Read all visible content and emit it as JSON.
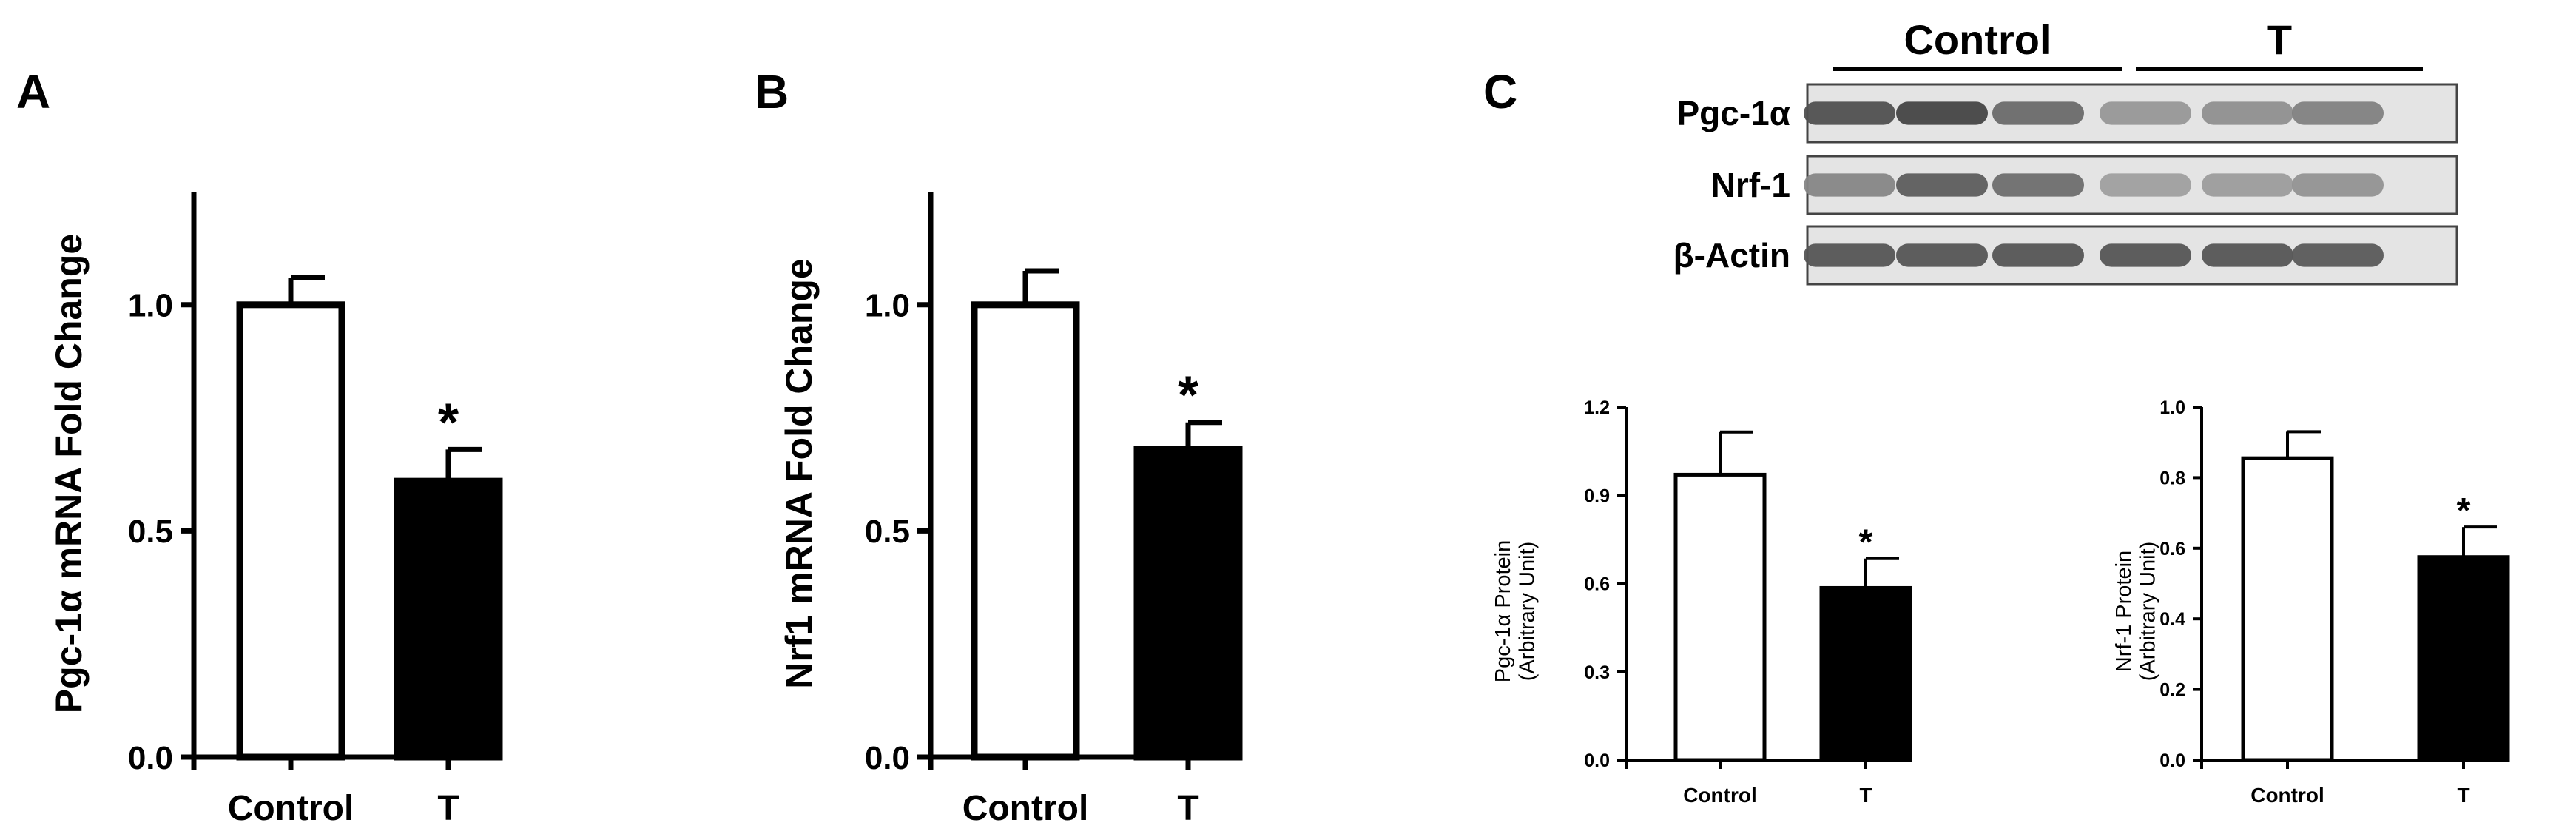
{
  "panels": {
    "a": "A",
    "b": "B",
    "c": "C"
  },
  "blot": {
    "group_labels": [
      "Control",
      "T"
    ],
    "lane_groups": [
      "Control",
      "Control",
      "Control",
      "T",
      "T",
      "T"
    ],
    "rows": [
      {
        "label": "Pgc-1α",
        "intensity": [
          0.88,
          0.95,
          0.72,
          0.45,
          0.5,
          0.58
        ]
      },
      {
        "label": "Nrf-1",
        "intensity": [
          0.55,
          0.8,
          0.7,
          0.4,
          0.42,
          0.48
        ]
      },
      {
        "label": "β-Actin",
        "intensity": [
          0.85,
          0.85,
          0.85,
          0.85,
          0.85,
          0.82
        ]
      }
    ]
  },
  "chart_data": [
    {
      "panel": "A",
      "type": "bar",
      "categories": [
        "Control",
        "T"
      ],
      "values": [
        1.0,
        0.61
      ],
      "errors": [
        0.06,
        0.07
      ],
      "significance": [
        "",
        "*"
      ],
      "ylabel": "Pgc-1α mRNA Fold Change",
      "xlabel": "",
      "ylim": [
        0,
        1.25
      ],
      "yticks": [
        0.0,
        0.5,
        1.0
      ],
      "ytick_labels": [
        "0.0",
        "0.5",
        "1.0"
      ],
      "fill": [
        "#ffffff",
        "#000000"
      ],
      "grid": false
    },
    {
      "panel": "B",
      "type": "bar",
      "categories": [
        "Control",
        "T"
      ],
      "values": [
        1.0,
        0.68
      ],
      "errors": [
        0.075,
        0.06
      ],
      "significance": [
        "",
        "*"
      ],
      "ylabel": "Nrf1 mRNA Fold Change",
      "xlabel": "",
      "ylim": [
        0,
        1.25
      ],
      "yticks": [
        0.0,
        0.5,
        1.0
      ],
      "ytick_labels": [
        "0.0",
        "0.5",
        "1.0"
      ],
      "fill": [
        "#ffffff",
        "#000000"
      ],
      "grid": false
    },
    {
      "panel": "C",
      "type": "bar",
      "categories": [
        "Control",
        "T"
      ],
      "values": [
        0.97,
        0.585
      ],
      "errors": [
        0.145,
        0.1
      ],
      "significance": [
        "",
        "*"
      ],
      "ylabel": [
        "Pgc-1α Protein",
        "(Arbitrary Unit)"
      ],
      "xlabel": "",
      "ylim": [
        0,
        1.2
      ],
      "yticks": [
        0.0,
        0.3,
        0.6,
        0.9,
        1.2
      ],
      "ytick_labels": [
        "0.0",
        "0.3",
        "0.6",
        "0.9",
        "1.2"
      ],
      "fill": [
        "#ffffff",
        "#000000"
      ],
      "grid": false
    },
    {
      "panel": "C",
      "type": "bar",
      "categories": [
        "Control",
        "T"
      ],
      "values": [
        0.855,
        0.575
      ],
      "errors": [
        0.075,
        0.085
      ],
      "significance": [
        "",
        "*"
      ],
      "ylabel": [
        "Nrf-1 Protein",
        "(Arbitrary Unit)"
      ],
      "xlabel": "",
      "ylim": [
        0,
        1.0
      ],
      "yticks": [
        0.0,
        0.2,
        0.4,
        0.6,
        0.8,
        1.0
      ],
      "ytick_labels": [
        "0.0",
        "0.2",
        "0.4",
        "0.6",
        "0.8",
        "1.0"
      ],
      "fill": [
        "#ffffff",
        "#000000"
      ],
      "grid": false
    }
  ]
}
